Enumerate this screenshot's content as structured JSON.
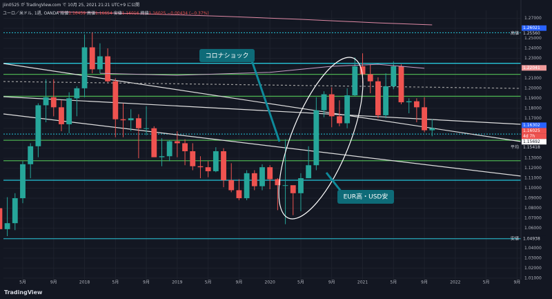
{
  "header": {
    "author_line": "jiin0525 が TradingView.com で 10月 25, 2021 21:21 UTC+9 に公開",
    "symbol": "ユーロ／米ドル, 1週, OANDA",
    "ohlc": [
      {
        "label": "始値",
        "value": "1.16459"
      },
      {
        "label": "高値",
        "value": "1.16654"
      },
      {
        "label": "安値",
        "value": "1.16016"
      },
      {
        "label": "終値",
        "value": "1.16025"
      }
    ],
    "change": "−0.00434 (−0.37%)"
  },
  "footer": "TradingView",
  "chart_data": {
    "type": "candlestick",
    "x": [
      1,
      2,
      3,
      4,
      5,
      6,
      7,
      8,
      9,
      10,
      11,
      12,
      13,
      14,
      15,
      16,
      17,
      18,
      19,
      20,
      21,
      22,
      23,
      24,
      25,
      26,
      27,
      28,
      29,
      30,
      31,
      32,
      33,
      34,
      35,
      36,
      37,
      38,
      39,
      40,
      41,
      42,
      43,
      44,
      45,
      46,
      47,
      48,
      49,
      50,
      51,
      52,
      53,
      54,
      55,
      56,
      57
    ],
    "open": [
      1.08,
      1.059,
      1.065,
      1.09,
      1.124,
      1.142,
      1.183,
      1.191,
      1.181,
      1.164,
      1.19,
      1.2,
      1.241,
      1.219,
      1.232,
      1.207,
      1.169,
      1.168,
      1.17,
      1.16,
      1.16,
      1.131,
      1.132,
      1.147,
      1.145,
      1.137,
      1.122,
      1.121,
      1.117,
      1.137,
      1.108,
      1.098,
      1.09,
      1.115,
      1.102,
      1.121,
      1.109,
      1.103,
      1.103,
      1.095,
      1.11,
      1.123,
      1.178,
      1.194,
      1.172,
      1.165,
      1.193,
      1.222,
      1.214,
      1.207,
      1.173,
      1.202,
      1.222,
      1.186,
      1.187,
      1.181,
      1.158
    ],
    "high": [
      1.083,
      1.091,
      1.095,
      1.127,
      1.145,
      1.185,
      1.209,
      1.209,
      1.188,
      1.196,
      1.202,
      1.254,
      1.256,
      1.245,
      1.24,
      1.21,
      1.185,
      1.179,
      1.174,
      1.182,
      1.162,
      1.15,
      1.148,
      1.157,
      1.149,
      1.145,
      1.132,
      1.127,
      1.141,
      1.14,
      1.125,
      1.109,
      1.118,
      1.118,
      1.124,
      1.123,
      1.11,
      1.149,
      1.102,
      1.115,
      1.142,
      1.191,
      1.197,
      1.201,
      1.188,
      1.2,
      1.231,
      1.235,
      1.224,
      1.211,
      1.215,
      1.227,
      1.224,
      1.19,
      1.19,
      1.191,
      1.169
    ],
    "low": [
      1.049,
      1.052,
      1.058,
      1.085,
      1.11,
      1.131,
      1.166,
      1.172,
      1.157,
      1.155,
      1.172,
      1.191,
      1.215,
      1.215,
      1.206,
      1.151,
      1.151,
      1.157,
      1.13,
      1.153,
      1.132,
      1.122,
      1.127,
      1.131,
      1.123,
      1.118,
      1.11,
      1.111,
      1.116,
      1.101,
      1.096,
      1.088,
      1.088,
      1.098,
      1.098,
      1.099,
      1.078,
      1.064,
      1.073,
      1.077,
      1.11,
      1.118,
      1.171,
      1.161,
      1.162,
      1.16,
      1.192,
      1.205,
      1.195,
      1.17,
      1.17,
      1.199,
      1.184,
      1.175,
      1.166,
      1.156,
      1.152
    ],
    "close": [
      1.059,
      1.065,
      1.09,
      1.124,
      1.142,
      1.183,
      1.191,
      1.181,
      1.164,
      1.19,
      1.2,
      1.241,
      1.219,
      1.232,
      1.207,
      1.169,
      1.168,
      1.17,
      1.16,
      1.16,
      1.131,
      1.132,
      1.147,
      1.145,
      1.137,
      1.122,
      1.121,
      1.117,
      1.137,
      1.108,
      1.098,
      1.09,
      1.115,
      1.102,
      1.121,
      1.109,
      1.103,
      1.103,
      1.095,
      1.11,
      1.123,
      1.178,
      1.194,
      1.172,
      1.165,
      1.193,
      1.222,
      1.214,
      1.207,
      1.173,
      1.202,
      1.222,
      1.186,
      1.187,
      1.181,
      1.158,
      1.16
    ],
    "up_color": "#26a69a",
    "down_color": "#ef5350",
    "series": [
      {
        "color": "#e08aa6",
        "x": [
          8.5,
          20,
          30,
          40,
          50,
          57
        ],
        "values": [
          1.2765,
          1.2745,
          1.272,
          1.269,
          1.2655,
          1.2635
        ]
      },
      {
        "color": "#c8a2c8",
        "x": [
          14,
          24,
          36,
          44,
          50,
          56
        ],
        "values": [
          1.215,
          1.213,
          1.216,
          1.222,
          1.224,
          1.22
        ]
      }
    ],
    "levels": [
      {
        "value": 1.225,
        "color": "#26c6da"
      },
      {
        "value": 1.214,
        "color": "#4caf50"
      },
      {
        "value": 1.192,
        "color": "#4caf50"
      },
      {
        "value": 1.148,
        "color": "#4caf50"
      },
      {
        "value": 1.1275,
        "color": "#4caf50"
      },
      {
        "value": 1.108,
        "color": "#26c6da"
      }
    ],
    "price_labels": [
      {
        "name": "高値",
        "value": 1.2556,
        "label": "1.25560",
        "color": "#131722",
        "text_color": "#d1d4dc"
      },
      {
        "value": 1.26021,
        "label": "1.26021",
        "color": "#2962ff",
        "text_color": "#ffffff"
      },
      {
        "value": 1.22041,
        "label": "1.22041",
        "color": "#ef9a9a",
        "text_color": "#ffffff"
      },
      {
        "value": 1.16302,
        "label": "1.16302",
        "color": "#2962ff",
        "text_color": "#ffffff"
      },
      {
        "value": 1.16025,
        "label": "1.16025",
        "color": "#ef5350",
        "text_color": "#ffffff"
      },
      {
        "value": 1.15692,
        "label": "1.15692",
        "color": "#ffffff",
        "text_color": "#131722"
      },
      {
        "name": "平均",
        "value": 1.15418,
        "label": "1.15418",
        "color": "#131722",
        "text_color": "#d1d4dc"
      },
      {
        "name": "安値",
        "value": 1.04938,
        "label": "1.04938",
        "color": "#131722",
        "text_color": "#d1d4dc"
      }
    ],
    "countdown": "4d 7h",
    "annotations": [
      "コロナショック",
      "EUR高・USD安"
    ],
    "xlim": [
      1.5,
      68.5
    ],
    "xticks": [
      {
        "value": 4,
        "label": "5月"
      },
      {
        "value": 8,
        "label": "9月"
      },
      {
        "value": 12,
        "label": "2018"
      },
      {
        "value": 16,
        "label": "5月"
      },
      {
        "value": 20,
        "label": "9月"
      },
      {
        "value": 24,
        "label": "2019"
      },
      {
        "value": 28,
        "label": "5月"
      },
      {
        "value": 32,
        "label": "9月"
      },
      {
        "value": 36,
        "label": "2020"
      },
      {
        "value": 40,
        "label": "5月"
      },
      {
        "value": 44,
        "label": "9月"
      },
      {
        "value": 48,
        "label": "2021"
      },
      {
        "value": 52,
        "label": "5月"
      },
      {
        "value": 56,
        "label": "9月"
      },
      {
        "value": 60,
        "label": "2022"
      },
      {
        "value": 64,
        "label": "5月"
      },
      {
        "value": 68,
        "label": "9月"
      }
    ],
    "ylim": [
      1.005,
      1.278
    ],
    "yticks": [
      {
        "value": 1.27,
        "label": "1.27000"
      },
      {
        "value": 1.26,
        "label": "1.26000"
      },
      {
        "value": 1.25,
        "label": "1.25000"
      },
      {
        "value": 1.24,
        "label": "1.24000"
      },
      {
        "value": 1.23,
        "label": "1.23000"
      },
      {
        "value": 1.22,
        "label": "1.22000"
      },
      {
        "value": 1.21,
        "label": "1.21000"
      },
      {
        "value": 1.2,
        "label": "1.20000"
      },
      {
        "value": 1.19,
        "label": "1.19000"
      },
      {
        "value": 1.18,
        "label": "1.18000"
      },
      {
        "value": 1.17,
        "label": "1.17000"
      },
      {
        "value": 1.16,
        "label": "1.16000"
      },
      {
        "value": 1.15,
        "label": "1.15000"
      },
      {
        "value": 1.14,
        "label": "1.14000"
      },
      {
        "value": 1.13,
        "label": "1.13000"
      },
      {
        "value": 1.12,
        "label": "1.12000"
      },
      {
        "value": 1.11,
        "label": "1.11000"
      },
      {
        "value": 1.1,
        "label": "1.10000"
      },
      {
        "value": 1.09,
        "label": "1.09000"
      },
      {
        "value": 1.08,
        "label": "1.08000"
      },
      {
        "value": 1.07,
        "label": "1.07000"
      },
      {
        "value": 1.06,
        "label": "1.06000"
      },
      {
        "value": 1.05,
        "label": "1.05000"
      },
      {
        "value": 1.04,
        "label": "1.04000"
      },
      {
        "value": 1.03,
        "label": "1.03000"
      },
      {
        "value": 1.02,
        "label": "1.02000"
      },
      {
        "value": 1.01,
        "label": "1.01000"
      }
    ],
    "grid": true
  }
}
